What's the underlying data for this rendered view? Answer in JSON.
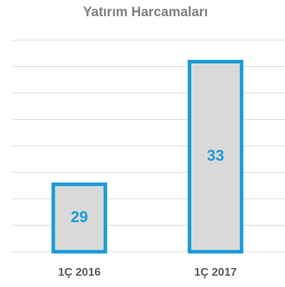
{
  "chart_data": {
    "type": "bar",
    "title": "Yatırım Harcamaları",
    "categories": [
      "1Ç 2016",
      "1Ç 2017"
    ],
    "values": [
      29,
      33
    ],
    "color": "#d9d9d9",
    "edge_color": "#1a9bd7",
    "ylim": [
      26.8,
      33.7
    ],
    "grid": true
  }
}
